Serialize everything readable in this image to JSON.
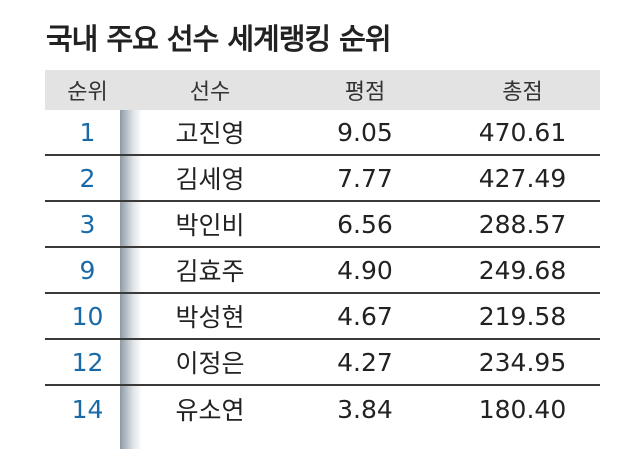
{
  "header": {
    "title": "국내 주요 선수 세계랭킹 순위"
  },
  "table": {
    "columns": [
      "순위",
      "선수",
      "평점",
      "총점"
    ],
    "rows": [
      [
        "1",
        "고진영",
        "9.05",
        "470.61"
      ],
      [
        "2",
        "김세영",
        "7.77",
        "427.49"
      ],
      [
        "3",
        "박인비",
        "6.56",
        "288.57"
      ],
      [
        "9",
        "김효주",
        "4.90",
        "249.68"
      ],
      [
        "10",
        "박성현",
        "4.67",
        "219.58"
      ],
      [
        "12",
        "이정은",
        "4.27",
        "234.95"
      ],
      [
        "14",
        "유소연",
        "3.84",
        "180.40"
      ]
    ]
  }
}
